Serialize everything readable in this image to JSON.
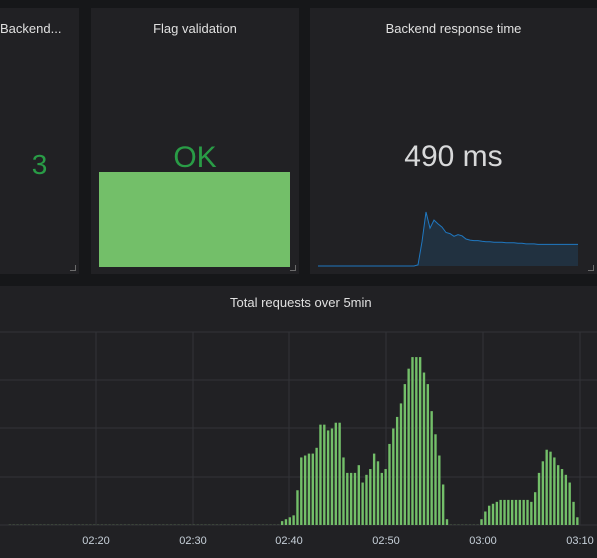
{
  "panels": {
    "backend_count": {
      "title": "Backend...",
      "value": "3"
    },
    "flag_validation": {
      "title": "Flag validation",
      "value": "OK",
      "color": "#299c46",
      "fill_color": "#73bf69"
    },
    "response_time": {
      "title": "Backend response time",
      "value": "490 ms",
      "spark_color": "#1f78c1"
    },
    "total_requests": {
      "title": "Total requests over 5min",
      "bar_color": "#73bf69"
    }
  },
  "chart_data": {
    "type": "bar",
    "title": "Total requests over 5min",
    "x_tick_labels": [
      "02:20",
      "02:30",
      "02:40",
      "02:50",
      "03:00",
      "03:10"
    ],
    "x_range": [
      "02:11",
      "03:10"
    ],
    "grid": true,
    "series": [
      {
        "values": [
          0,
          0,
          0,
          0,
          0,
          0,
          0,
          0,
          0,
          0,
          0,
          0,
          0,
          0,
          0,
          0,
          0,
          0,
          0,
          0,
          0,
          0,
          0,
          0,
          0,
          0,
          0,
          0,
          0,
          0,
          0,
          0,
          0,
          0,
          0,
          0,
          0,
          0,
          0,
          0,
          0,
          0,
          0,
          0,
          0,
          0,
          0,
          0,
          0,
          0,
          0,
          0,
          0,
          0,
          0,
          0,
          0,
          0,
          0,
          0,
          0,
          0,
          0,
          0,
          0,
          0,
          0,
          0,
          0,
          0,
          0,
          0.02,
          0.03,
          0.04,
          0.05,
          0.18,
          0.35,
          0.36,
          0.37,
          0.37,
          0.4,
          0.52,
          0.52,
          0.49,
          0.5,
          0.53,
          0.53,
          0.35,
          0.27,
          0.27,
          0.27,
          0.31,
          0.22,
          0.26,
          0.29,
          0.37,
          0.33,
          0.27,
          0.29,
          0.42,
          0.5,
          0.56,
          0.63,
          0.73,
          0.81,
          0.87,
          0.87,
          0.87,
          0.79,
          0.73,
          0.59,
          0.47,
          0.36,
          0.21,
          0.03,
          0,
          0,
          0,
          0,
          0,
          0,
          0,
          0,
          0.03,
          0.07,
          0.1,
          0.11,
          0.12,
          0.13,
          0.13,
          0.13,
          0.13,
          0.13,
          0.13,
          0.13,
          0.13,
          0.12,
          0.17,
          0.27,
          0.33,
          0.39,
          0.38,
          0.35,
          0.31,
          0.29,
          0.26,
          0.22,
          0.12,
          0.04
        ]
      }
    ]
  },
  "sparkline": {
    "values": [
      0.0,
      0.0,
      0.0,
      0.0,
      0.0,
      0.0,
      0.0,
      0.0,
      0.0,
      0.0,
      0.0,
      0.0,
      0.0,
      0.0,
      0.0,
      0.0,
      0.0,
      0.0,
      0.0,
      0.0,
      0.0,
      0.0,
      0.0,
      0.0,
      0.0,
      0.02,
      0.45,
      1.0,
      0.7,
      0.85,
      0.78,
      0.72,
      0.62,
      0.6,
      0.55,
      0.58,
      0.56,
      0.5,
      0.48,
      0.47,
      0.47,
      0.46,
      0.45,
      0.45,
      0.44,
      0.44,
      0.44,
      0.43,
      0.43,
      0.43,
      0.42,
      0.42,
      0.41,
      0.41,
      0.41,
      0.4,
      0.4,
      0.4,
      0.4,
      0.4,
      0.4,
      0.4,
      0.4,
      0.4,
      0.4,
      0.4
    ]
  }
}
